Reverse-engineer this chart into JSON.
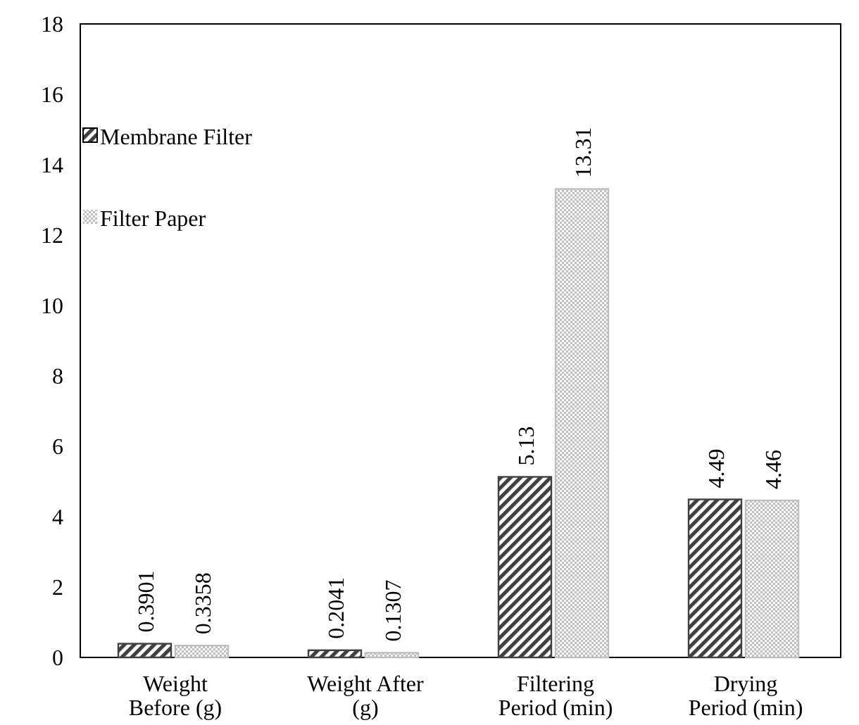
{
  "chart_data": {
    "type": "bar",
    "categories": [
      "Weight Before (g)",
      "Weight After (g)",
      "Filtering Period (min)",
      "Drying Period (min)"
    ],
    "series": [
      {
        "name": "Membrane Filter",
        "color": "#404040",
        "values": [
          0.3901,
          0.2041,
          5.13,
          4.49
        ]
      },
      {
        "name": "Filter Paper",
        "color": "#bfbfbf",
        "values": [
          0.3358,
          0.1307,
          13.31,
          4.46
        ]
      }
    ],
    "ylim": [
      0,
      18
    ],
    "yticks": [
      0,
      2,
      4,
      6,
      8,
      10,
      12,
      14,
      16,
      18
    ],
    "grid": false,
    "legend": "top left",
    "data_labels": true
  }
}
